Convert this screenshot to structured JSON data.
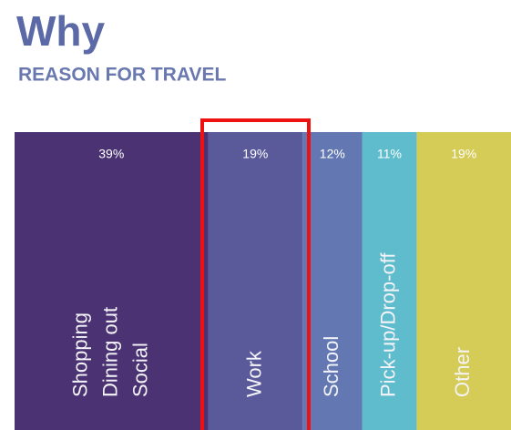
{
  "chart_data": {
    "type": "stacked-column-share",
    "title": "Why",
    "subtitle": "REASON FOR TRAVEL",
    "categories": [
      "Shopping\nDining out\nSocial",
      "Work",
      "School",
      "Pick-up/Drop-off",
      "Other"
    ],
    "values": [
      39,
      19,
      12,
      11,
      19
    ],
    "value_labels": [
      "39%",
      "19%",
      "12%",
      "11%",
      "19%"
    ],
    "colors": [
      "#4b3373",
      "#5a5a9a",
      "#6378b3",
      "#5fbccd",
      "#d5cb57"
    ]
  }
}
